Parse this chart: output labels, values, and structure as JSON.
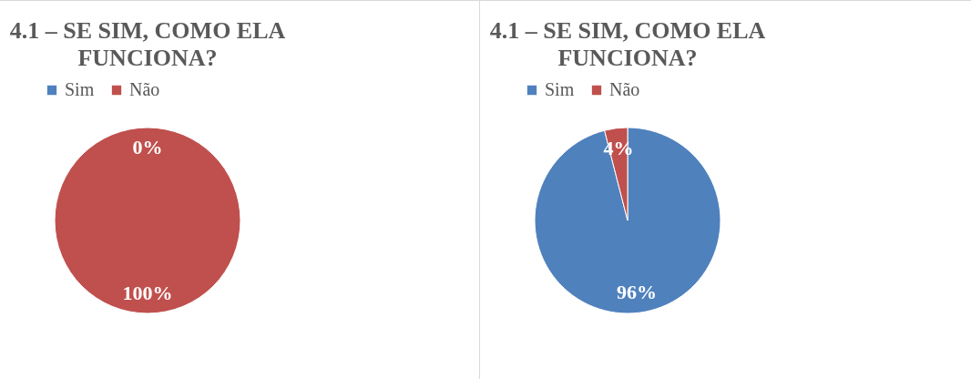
{
  "chart_data": [
    {
      "type": "pie",
      "title": "4.1 – SE SIM, COMO ELA FUNCIONA?",
      "categories": [
        "Sim",
        "Não"
      ],
      "values": [
        0,
        100
      ],
      "colors": [
        "#4f81bd",
        "#c0504d"
      ],
      "value_labels": [
        "0%",
        "100%"
      ],
      "legend": "top"
    },
    {
      "type": "pie",
      "title": "4.1 – SE SIM, COMO ELA FUNCIONA?",
      "categories": [
        "Sim",
        "Não"
      ],
      "values": [
        96,
        4
      ],
      "colors": [
        "#4f81bd",
        "#c0504d"
      ],
      "value_labels": [
        "96%",
        "4%"
      ],
      "legend": "top"
    }
  ]
}
